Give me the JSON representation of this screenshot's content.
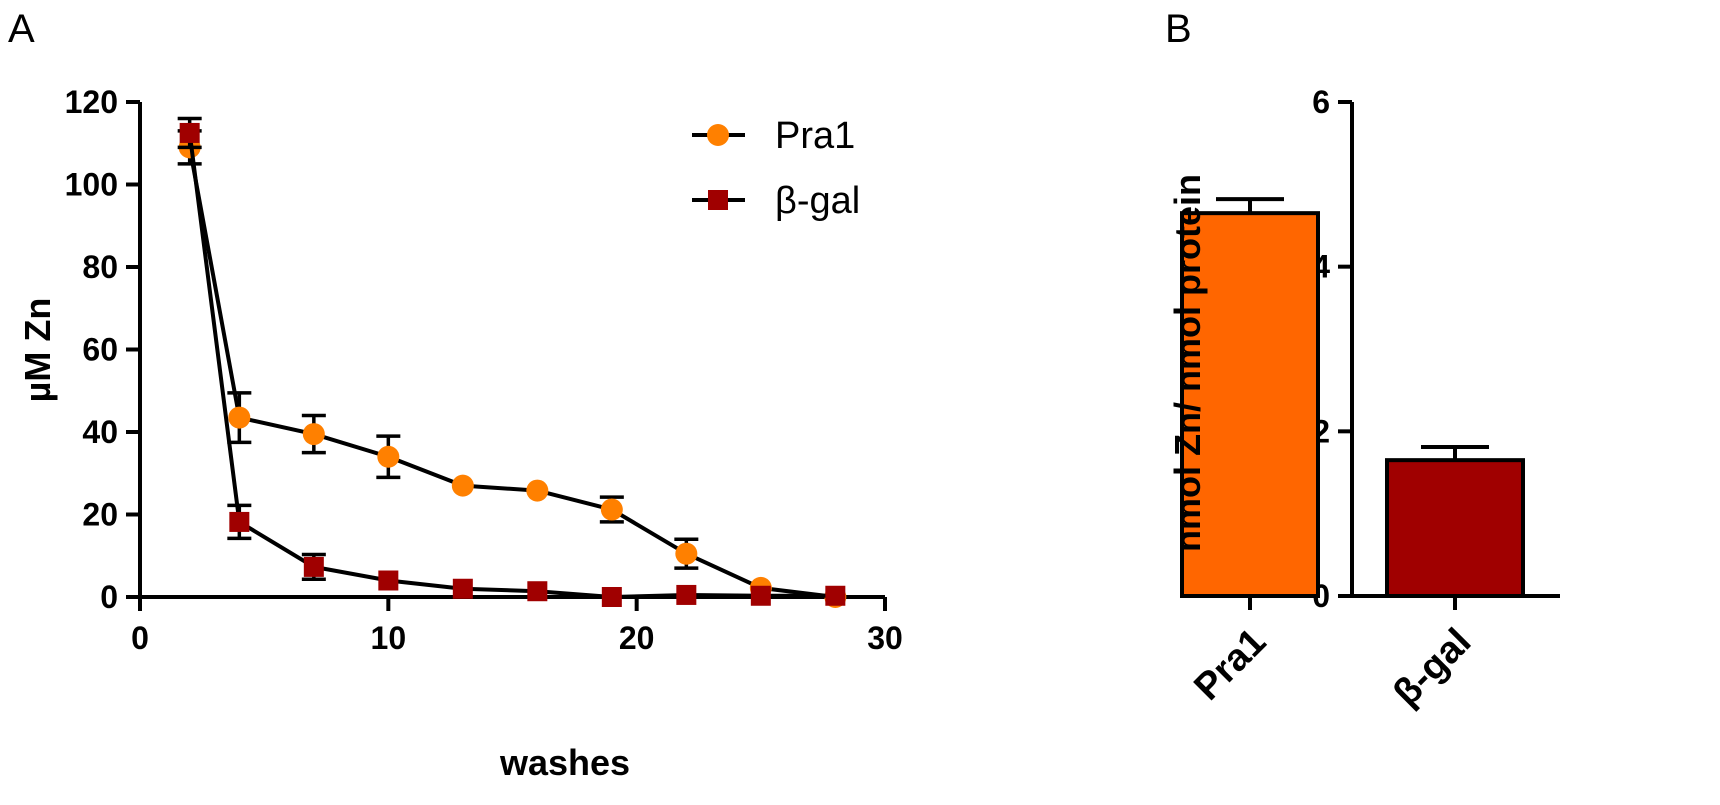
{
  "panels": {
    "a_label": "A",
    "b_label": "B"
  },
  "chart_data": [
    {
      "type": "line",
      "xlabel": "washes",
      "ylabel": "µM Zn",
      "xlim": [
        0,
        30
      ],
      "ylim": [
        0,
        120
      ],
      "xticks": [
        0,
        10,
        20,
        30
      ],
      "yticks": [
        0,
        20,
        40,
        60,
        80,
        100,
        120
      ],
      "legend": "top-right",
      "series": [
        {
          "name": "Pra1",
          "marker": "circle",
          "color": "#FF8000",
          "x": [
            2,
            4,
            7,
            10,
            13,
            16,
            19,
            22,
            25,
            28
          ],
          "y": [
            109,
            43.5,
            39.5,
            34,
            27,
            25.8,
            21.2,
            10.5,
            2.2,
            0
          ],
          "err": [
            4,
            6,
            4.5,
            5,
            0,
            0,
            3,
            3.5,
            0,
            0
          ]
        },
        {
          "name": "β-gal",
          "marker": "square",
          "color": "#A00000",
          "x": [
            2,
            4,
            7,
            10,
            13,
            16,
            19,
            22,
            25,
            28
          ],
          "y": [
            112.5,
            18.2,
            7.3,
            4,
            2,
            1.4,
            0,
            0.5,
            0.3,
            0.3
          ],
          "err": [
            3.5,
            4,
            3,
            0,
            0,
            0,
            0,
            0,
            0,
            0
          ]
        }
      ]
    },
    {
      "type": "bar",
      "categories": [
        "Pra1",
        "β-gal"
      ],
      "values": [
        4.65,
        1.65
      ],
      "errors": [
        0.17,
        0.16
      ],
      "colors": [
        "#FF6600",
        "#A00000"
      ],
      "ylabel": "nmol Zn/ nmol protein",
      "ylim": [
        0,
        6
      ],
      "yticks": [
        0,
        2,
        4,
        6
      ]
    }
  ]
}
